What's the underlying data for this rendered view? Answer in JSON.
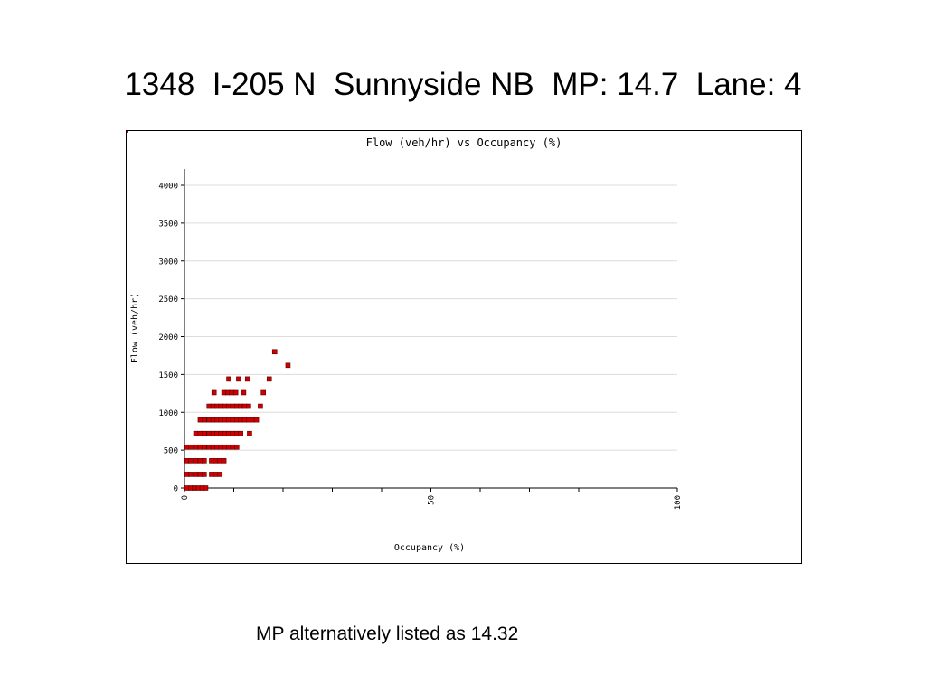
{
  "slide": {
    "title": "1348  I-205 N  Sunnyside NB  MP: 14.7  Lane: 4",
    "footnote": "MP alternatively listed as 14.32"
  },
  "chart_data": {
    "type": "scatter",
    "title": "Flow (veh/hr) vs Occupancy (%)",
    "xlabel": "Occupancy (%)",
    "ylabel": "Flow (veh/hr)",
    "xlim": [
      0,
      100
    ],
    "ylim": [
      0,
      4000
    ],
    "x_ticks": [
      0,
      50,
      100
    ],
    "y_ticks": [
      0,
      500,
      1000,
      1500,
      2000,
      2500,
      3000,
      3500,
      4000
    ],
    "grid": true,
    "marker_color": "#cc0000",
    "points": [
      [
        0.5,
        0
      ],
      [
        1.3,
        0
      ],
      [
        2,
        0
      ],
      [
        2.8,
        0
      ],
      [
        3.6,
        0
      ],
      [
        4.3,
        0
      ],
      [
        0.5,
        180
      ],
      [
        1.3,
        180
      ],
      [
        2.3,
        180
      ],
      [
        3.2,
        180
      ],
      [
        4,
        180
      ],
      [
        5.5,
        180
      ],
      [
        6.3,
        180
      ],
      [
        7.2,
        180
      ],
      [
        0.5,
        360
      ],
      [
        1.3,
        360
      ],
      [
        2.3,
        360
      ],
      [
        3.2,
        360
      ],
      [
        4,
        360
      ],
      [
        5.5,
        360
      ],
      [
        6.3,
        360
      ],
      [
        7.2,
        360
      ],
      [
        8,
        360
      ],
      [
        0.5,
        540
      ],
      [
        1.3,
        540
      ],
      [
        2.3,
        540
      ],
      [
        3.2,
        540
      ],
      [
        4,
        540
      ],
      [
        5,
        540
      ],
      [
        5.8,
        540
      ],
      [
        6.6,
        540
      ],
      [
        7.4,
        540
      ],
      [
        8.2,
        540
      ],
      [
        9,
        540
      ],
      [
        9.8,
        540
      ],
      [
        10.6,
        540
      ],
      [
        2.3,
        720
      ],
      [
        3.2,
        720
      ],
      [
        4,
        720
      ],
      [
        5,
        720
      ],
      [
        5.8,
        720
      ],
      [
        6.6,
        720
      ],
      [
        7.4,
        720
      ],
      [
        8.2,
        720
      ],
      [
        9,
        720
      ],
      [
        9.8,
        720
      ],
      [
        10.6,
        720
      ],
      [
        11.4,
        720
      ],
      [
        13.2,
        720
      ],
      [
        3.2,
        900
      ],
      [
        4,
        900
      ],
      [
        5,
        900
      ],
      [
        5.8,
        900
      ],
      [
        6.6,
        900
      ],
      [
        7.4,
        900
      ],
      [
        8.2,
        900
      ],
      [
        9,
        900
      ],
      [
        9.8,
        900
      ],
      [
        10.6,
        900
      ],
      [
        11.4,
        900
      ],
      [
        12.2,
        900
      ],
      [
        13,
        900
      ],
      [
        13.8,
        900
      ],
      [
        14.6,
        900
      ],
      [
        5,
        1080
      ],
      [
        5.8,
        1080
      ],
      [
        6.6,
        1080
      ],
      [
        7.4,
        1080
      ],
      [
        8.2,
        1080
      ],
      [
        9,
        1080
      ],
      [
        9.8,
        1080
      ],
      [
        10.6,
        1080
      ],
      [
        11.4,
        1080
      ],
      [
        12.2,
        1080
      ],
      [
        13,
        1080
      ],
      [
        15.4,
        1080
      ],
      [
        6,
        1260
      ],
      [
        8,
        1260
      ],
      [
        8.8,
        1260
      ],
      [
        9.6,
        1260
      ],
      [
        10.4,
        1260
      ],
      [
        12,
        1260
      ],
      [
        16,
        1260
      ],
      [
        9,
        1440
      ],
      [
        11,
        1440
      ],
      [
        12.8,
        1440
      ],
      [
        17.2,
        1440
      ],
      [
        18.3,
        1800
      ],
      [
        21,
        1620
      ]
    ]
  }
}
